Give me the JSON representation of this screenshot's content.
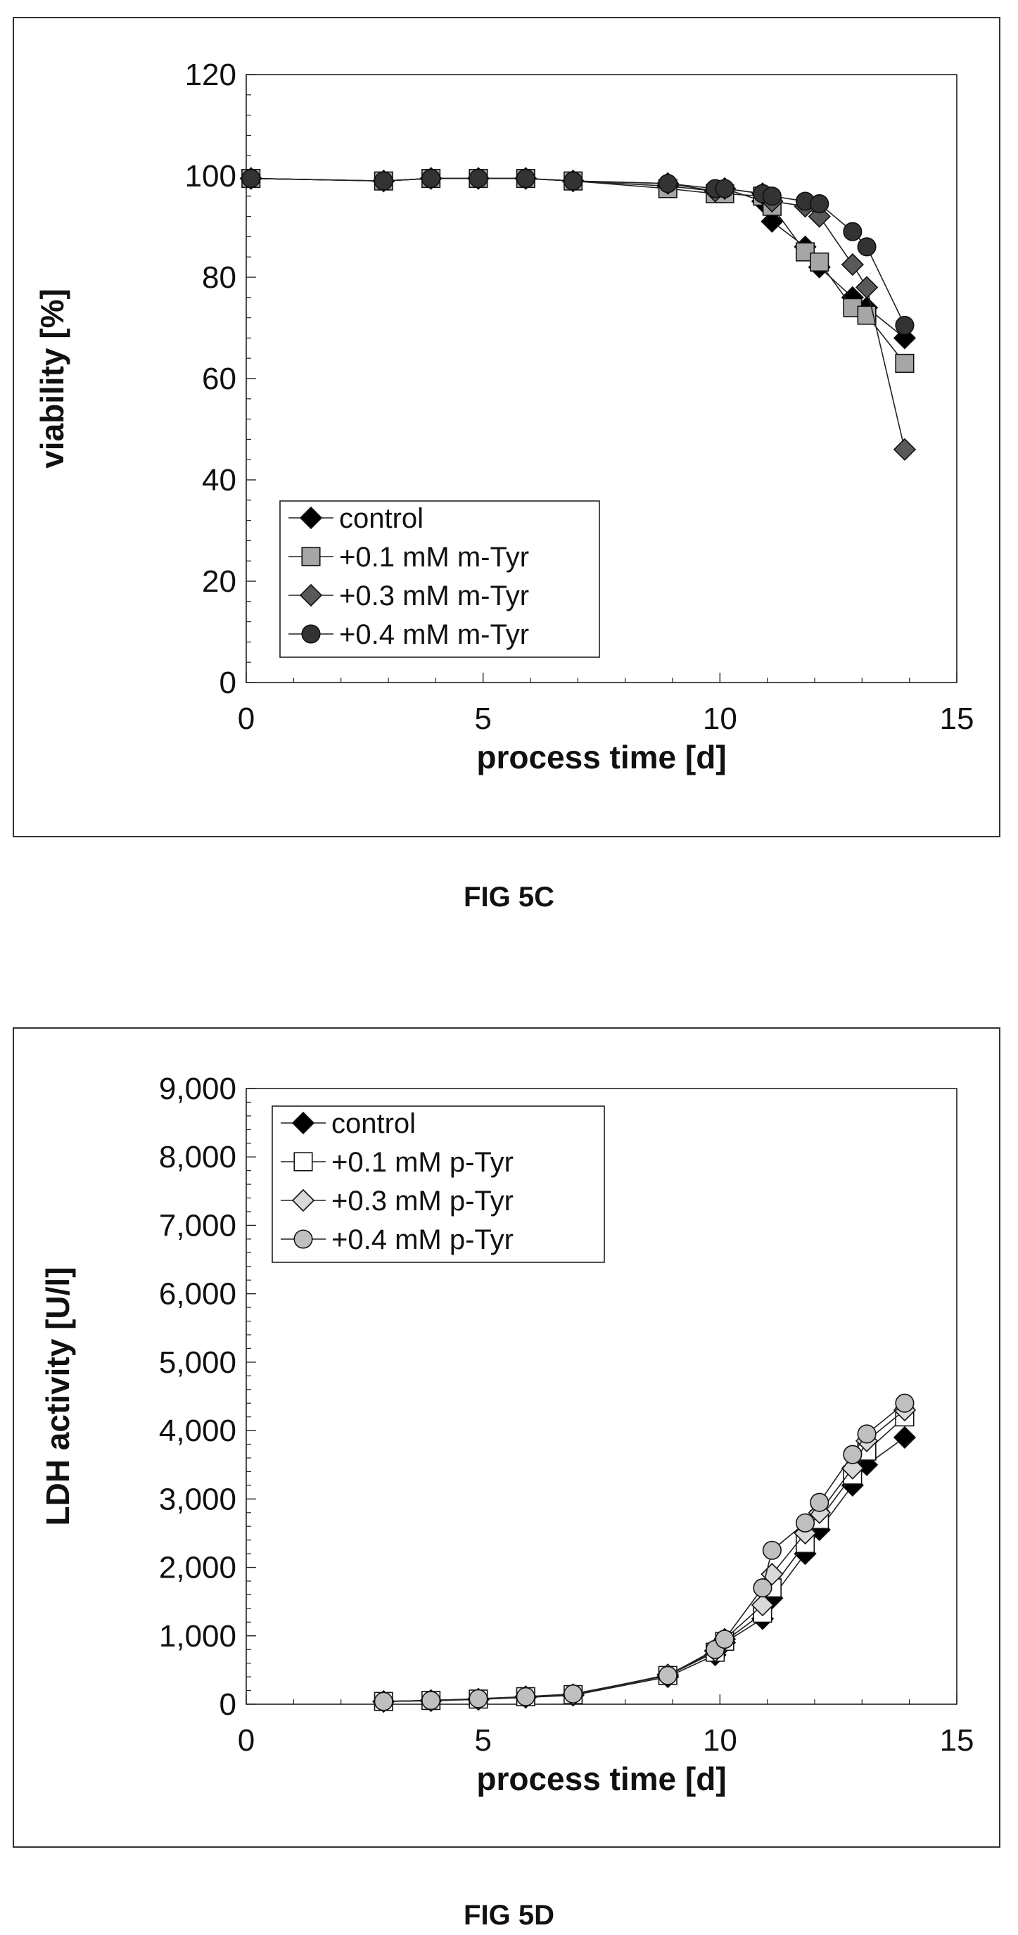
{
  "figures": [
    {
      "label": "FIG 5C"
    },
    {
      "label": "FIG 5D"
    }
  ],
  "chart_data": [
    {
      "type": "line",
      "title": "",
      "xlabel": "process time [d]",
      "ylabel": "viability [%]",
      "xlim": [
        0,
        15
      ],
      "ylim": [
        0,
        120
      ],
      "xticks": [
        0,
        5,
        10,
        15
      ],
      "yticks": [
        0,
        20,
        40,
        60,
        80,
        100,
        120
      ],
      "ytick_labels": [
        "0",
        "20",
        "40",
        "60",
        "80",
        "100",
        "120"
      ],
      "grid": false,
      "legend_position": "bottom-left",
      "series": [
        {
          "name": "control",
          "marker": "diamond",
          "color": "#000000",
          "x": [
            0.1,
            2.9,
            3.9,
            4.9,
            5.9,
            6.9,
            8.9,
            9.9,
            10.1,
            10.9,
            11.1,
            11.8,
            12.1,
            12.8,
            13.1,
            13.9
          ],
          "y": [
            99.5,
            99,
            99.5,
            99.5,
            99.5,
            99,
            98,
            97,
            97.5,
            95,
            91,
            86,
            82,
            76,
            74,
            68
          ]
        },
        {
          "name": "+0.1 mM m-Tyr",
          "marker": "square",
          "color": "#a6a6a6",
          "x": [
            0.1,
            2.9,
            3.9,
            4.9,
            5.9,
            6.9,
            8.9,
            9.9,
            10.1,
            10.9,
            11.1,
            11.8,
            12.1,
            12.8,
            13.1,
            13.9
          ],
          "y": [
            99.5,
            99,
            99.5,
            99.5,
            99.5,
            99,
            97.5,
            96.5,
            96.5,
            96,
            94,
            85,
            83,
            74,
            72.5,
            63
          ]
        },
        {
          "name": "+0.3 mM m-Tyr",
          "marker": "diamond",
          "color": "#595959",
          "x": [
            0.1,
            2.9,
            3.9,
            4.9,
            5.9,
            6.9,
            8.9,
            9.9,
            10.1,
            10.9,
            11.1,
            11.8,
            12.1,
            12.8,
            13.1,
            13.9
          ],
          "y": [
            99.5,
            99,
            99.5,
            99.5,
            99.5,
            99,
            98.5,
            97,
            97.5,
            96.5,
            95,
            94,
            92,
            82.5,
            78,
            46
          ]
        },
        {
          "name": "+0.4 mM m-Tyr",
          "marker": "circle",
          "color": "#333333",
          "x": [
            0.1,
            2.9,
            3.9,
            4.9,
            5.9,
            6.9,
            8.9,
            9.9,
            10.1,
            10.9,
            11.1,
            11.8,
            12.1,
            12.8,
            13.1,
            13.9
          ],
          "y": [
            99.5,
            99,
            99.5,
            99.5,
            99.5,
            99,
            98.5,
            97.5,
            97.5,
            96.5,
            96,
            95,
            94.5,
            89,
            86,
            70.5
          ]
        }
      ]
    },
    {
      "type": "line",
      "title": "",
      "xlabel": "process time [d]",
      "ylabel": "LDH activity [U/l]",
      "xlim": [
        0,
        15
      ],
      "ylim": [
        0,
        9000
      ],
      "xticks": [
        0,
        5,
        10,
        15
      ],
      "yticks": [
        0,
        1000,
        2000,
        3000,
        4000,
        5000,
        6000,
        7000,
        8000,
        9000
      ],
      "ytick_labels": [
        "0",
        "1,000",
        "2,000",
        "3,000",
        "4,000",
        "5,000",
        "6,000",
        "7,000",
        "8,000",
        "9,000"
      ],
      "grid": false,
      "legend_position": "top-left",
      "series": [
        {
          "name": "control",
          "marker": "diamond",
          "color": "#000000",
          "x": [
            2.9,
            3.9,
            4.9,
            5.9,
            6.9,
            8.9,
            9.9,
            10.1,
            10.9,
            11.1,
            11.8,
            12.1,
            12.8,
            13.1,
            13.9
          ],
          "y": [
            40,
            50,
            70,
            100,
            130,
            400,
            720,
            900,
            1250,
            1550,
            2200,
            2550,
            3200,
            3500,
            3900
          ]
        },
        {
          "name": "+0.1 mM p-Tyr",
          "marker": "square",
          "color": "#ffffff",
          "x": [
            2.9,
            3.9,
            4.9,
            5.9,
            6.9,
            8.9,
            9.9,
            10.1,
            10.9,
            11.1,
            11.8,
            12.1,
            12.8,
            13.1,
            13.9
          ],
          "y": [
            40,
            55,
            75,
            110,
            140,
            420,
            760,
            920,
            1330,
            1700,
            2350,
            2700,
            3350,
            3700,
            4200
          ]
        },
        {
          "name": "+0.3 mM p-Tyr",
          "marker": "diamond",
          "color": "#d9d9d9",
          "x": [
            2.9,
            3.9,
            4.9,
            5.9,
            6.9,
            8.9,
            9.9,
            10.1,
            10.9,
            11.1,
            11.8,
            12.1,
            12.8,
            13.1,
            13.9
          ],
          "y": [
            40,
            55,
            75,
            110,
            140,
            430,
            780,
            950,
            1450,
            1900,
            2500,
            2800,
            3450,
            3850,
            4300
          ]
        },
        {
          "name": "+0.4 mM p-Tyr",
          "marker": "circle",
          "color": "#bfbfbf",
          "x": [
            2.9,
            3.9,
            4.9,
            5.9,
            6.9,
            8.9,
            9.9,
            10.1,
            10.9,
            11.1,
            11.8,
            12.1,
            12.8,
            13.1,
            13.9
          ],
          "y": [
            40,
            55,
            80,
            110,
            150,
            420,
            800,
            950,
            1700,
            2250,
            2650,
            2950,
            3650,
            3950,
            4400
          ]
        }
      ]
    }
  ]
}
